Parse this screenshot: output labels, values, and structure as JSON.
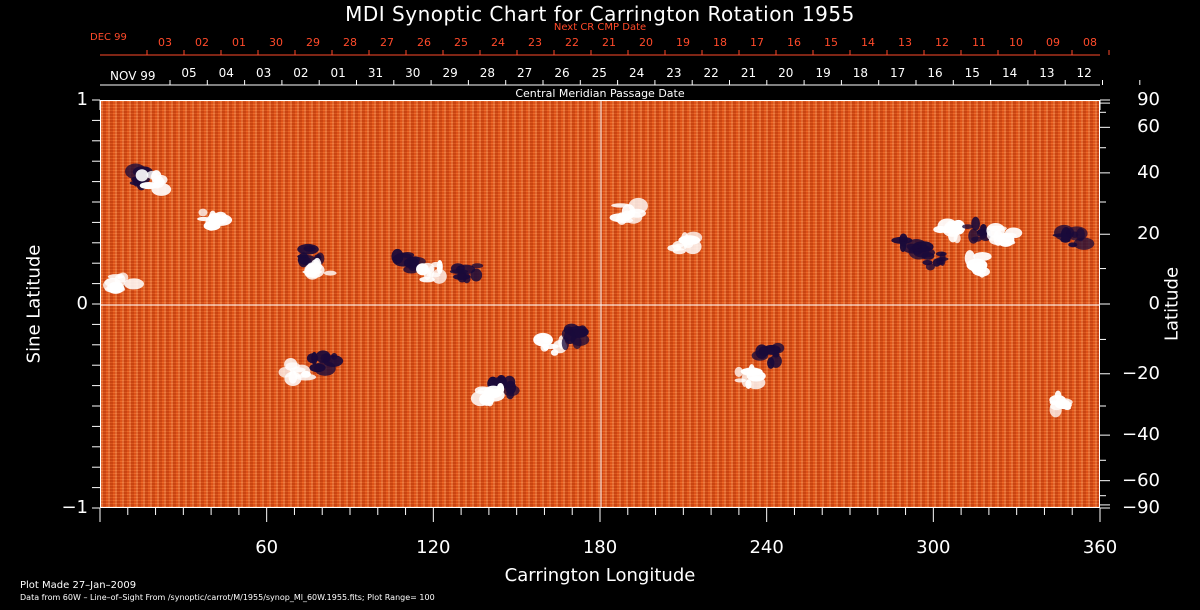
{
  "title": "MDI Synoptic Chart for Carrington Rotation 1955",
  "next_cr_label": "Next CR CMP Date",
  "next_cr_month": "DEC 99",
  "next_cr_days": [
    "03",
    "02",
    "01",
    "30",
    "29",
    "28",
    "27",
    "26",
    "25",
    "24",
    "23",
    "22",
    "21",
    "20",
    "19",
    "18",
    "17",
    "16",
    "15",
    "14",
    "13",
    "12",
    "11",
    "10",
    "09",
    "08"
  ],
  "cmp_month": "NOV 99",
  "cmp_days": [
    "05",
    "04",
    "03",
    "02",
    "01",
    "31",
    "30",
    "29",
    "28",
    "27",
    "26",
    "25",
    "24",
    "23",
    "22",
    "21",
    "20",
    "19",
    "18",
    "17",
    "16",
    "15",
    "14",
    "13",
    "12"
  ],
  "cmp_label": "Central Meridian Passage Date",
  "xlabel": "Carrington Longitude",
  "ylabel_left": "Sine Latitude",
  "ylabel_right": "Latitude",
  "x_ticks": [
    "60",
    "120",
    "180",
    "240",
    "300",
    "360"
  ],
  "y_left_ticks": [
    {
      "label": "1",
      "value": 1
    },
    {
      "label": "0",
      "value": 0
    },
    {
      "label": "−1",
      "value": -1
    }
  ],
  "y_right_ticks": [
    {
      "label": "90",
      "lat": 90
    },
    {
      "label": "60",
      "lat": 60
    },
    {
      "label": "40",
      "lat": 40
    },
    {
      "label": "20",
      "lat": 20
    },
    {
      "label": "0",
      "lat": 0
    },
    {
      "label": "−20",
      "lat": -20
    },
    {
      "label": "−40",
      "lat": -40
    },
    {
      "label": "−60",
      "lat": -60
    },
    {
      "label": "−90",
      "lat": -90
    }
  ],
  "footer_line1": "Plot Made 27–Jan–2009",
  "footer_line2": "Data from 60W – Line–of–Sight From /synoptic/carrot/M/1955/synop_Ml_60W.1955.fits; Plot Range=  100",
  "colors": {
    "background": "#e8571c",
    "positive": "#ffffff",
    "negative": "#1a0a3a",
    "axis": "#ffffff",
    "accent": "#ff4a2a"
  },
  "active_regions": [
    {
      "lon": 15,
      "sinlat": 0.62,
      "polarity": "negative"
    },
    {
      "lon": 18,
      "sinlat": 0.6,
      "polarity": "positive"
    },
    {
      "lon": 8,
      "sinlat": 0.1,
      "polarity": "positive"
    },
    {
      "lon": 40,
      "sinlat": 0.42,
      "polarity": "positive"
    },
    {
      "lon": 75,
      "sinlat": 0.24,
      "polarity": "negative"
    },
    {
      "lon": 79,
      "sinlat": 0.18,
      "polarity": "positive"
    },
    {
      "lon": 110,
      "sinlat": 0.21,
      "polarity": "negative"
    },
    {
      "lon": 119,
      "sinlat": 0.16,
      "polarity": "positive"
    },
    {
      "lon": 132,
      "sinlat": 0.16,
      "polarity": "negative"
    },
    {
      "lon": 70,
      "sinlat": -0.33,
      "polarity": "positive"
    },
    {
      "lon": 80,
      "sinlat": -0.29,
      "polarity": "negative"
    },
    {
      "lon": 145,
      "sinlat": -0.4,
      "polarity": "negative"
    },
    {
      "lon": 140,
      "sinlat": -0.45,
      "polarity": "positive"
    },
    {
      "lon": 162,
      "sinlat": -0.2,
      "polarity": "positive"
    },
    {
      "lon": 170,
      "sinlat": -0.15,
      "polarity": "negative"
    },
    {
      "lon": 190,
      "sinlat": 0.45,
      "polarity": "positive"
    },
    {
      "lon": 210,
      "sinlat": 0.3,
      "polarity": "positive"
    },
    {
      "lon": 240,
      "sinlat": -0.25,
      "polarity": "negative"
    },
    {
      "lon": 233,
      "sinlat": -0.35,
      "polarity": "positive"
    },
    {
      "lon": 292,
      "sinlat": 0.28,
      "polarity": "negative"
    },
    {
      "lon": 305,
      "sinlat": 0.35,
      "polarity": "positive"
    },
    {
      "lon": 315,
      "sinlat": 0.36,
      "polarity": "negative"
    },
    {
      "lon": 325,
      "sinlat": 0.34,
      "polarity": "positive"
    },
    {
      "lon": 315,
      "sinlat": 0.2,
      "polarity": "positive"
    },
    {
      "lon": 300,
      "sinlat": 0.22,
      "polarity": "negative"
    },
    {
      "lon": 350,
      "sinlat": 0.32,
      "polarity": "negative"
    },
    {
      "lon": 345,
      "sinlat": -0.48,
      "polarity": "positive"
    }
  ]
}
